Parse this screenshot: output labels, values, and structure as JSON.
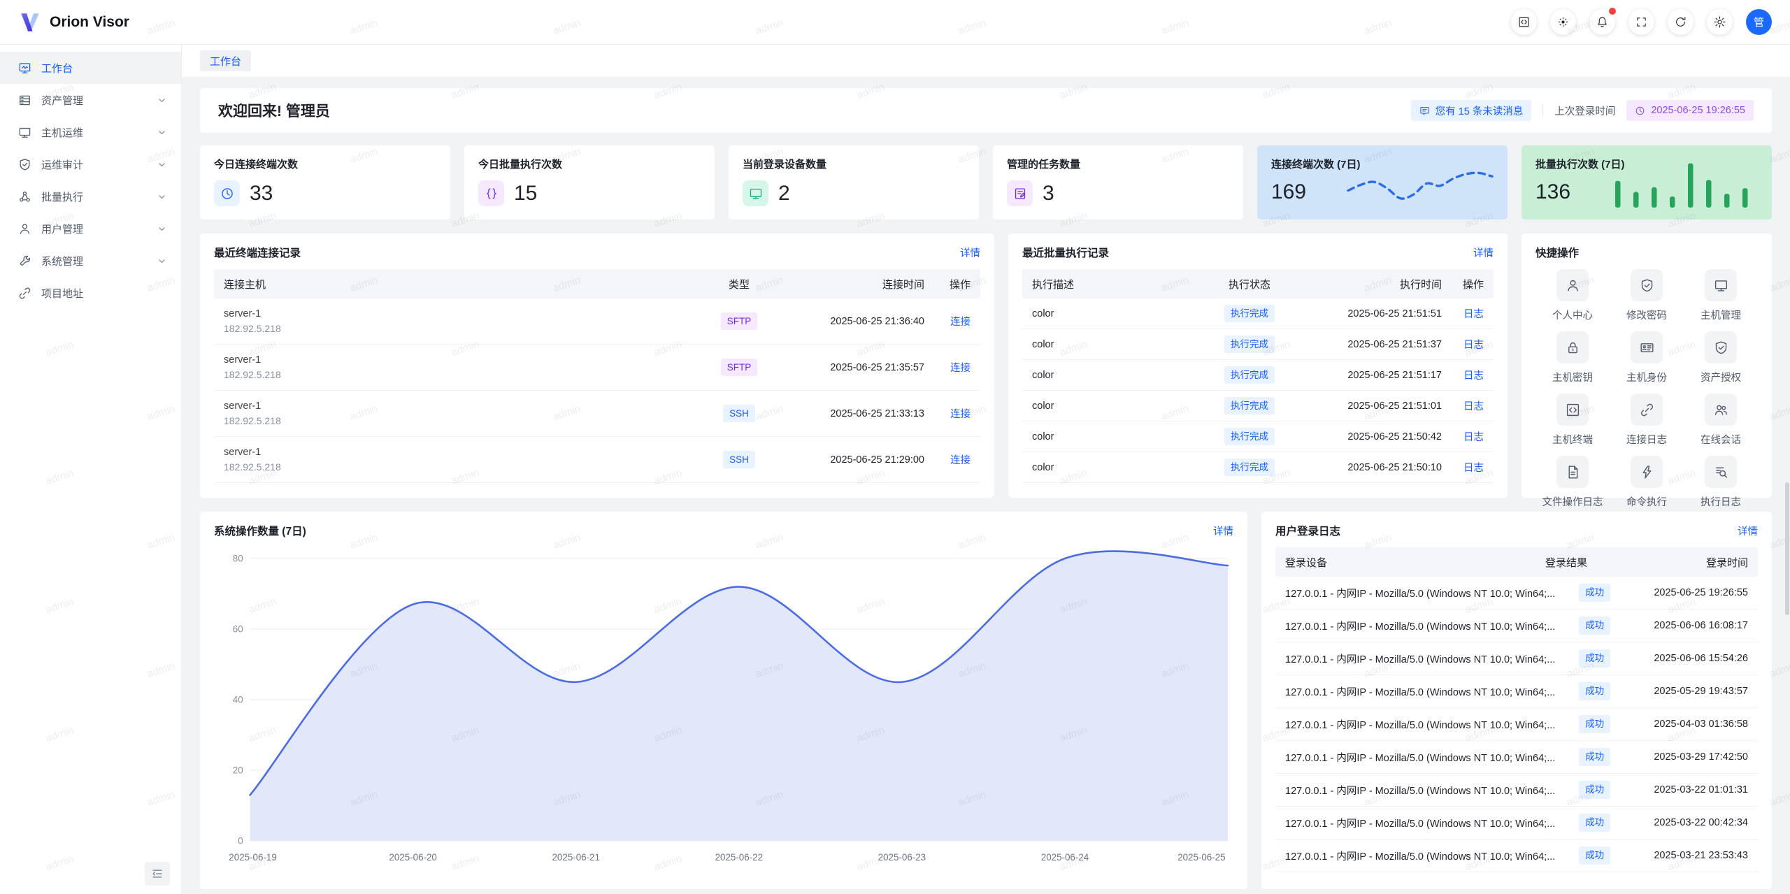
{
  "app": {
    "title": "Orion Visor",
    "avatar_text": "管"
  },
  "watermark": {
    "text": "admin"
  },
  "ui": {
    "detail_label": "详情"
  },
  "breadcrumb": {
    "label": "工作台"
  },
  "sidebar": {
    "items": [
      {
        "label": "工作台",
        "icon": "workbench",
        "active": true,
        "expandable": false
      },
      {
        "label": "资产管理",
        "icon": "assets",
        "active": false,
        "expandable": true
      },
      {
        "label": "主机运维",
        "icon": "monitor",
        "active": false,
        "expandable": true
      },
      {
        "label": "运维审计",
        "icon": "shield-check",
        "active": false,
        "expandable": true
      },
      {
        "label": "批量执行",
        "icon": "cluster",
        "active": false,
        "expandable": true
      },
      {
        "label": "用户管理",
        "icon": "person",
        "active": false,
        "expandable": true
      },
      {
        "label": "系统管理",
        "icon": "wrench",
        "active": false,
        "expandable": true
      },
      {
        "label": "项目地址",
        "icon": "link",
        "active": false,
        "expandable": false
      }
    ]
  },
  "welcome": {
    "title": "欢迎回来! 管理员",
    "unread_badge": "您有 15 条未读消息",
    "last_login_label": "上次登录时间",
    "last_login_time": "2025-06-25 19:26:55"
  },
  "stat_cards": [
    {
      "title": "今日连接终端次数",
      "value": "33",
      "icon": "clock",
      "icon_color": "#165dff",
      "icon_bg": "#e8f3ff"
    },
    {
      "title": "今日批量执行次数",
      "value": "15",
      "icon": "braces",
      "icon_color": "#722ed1",
      "icon_bg": "#f5e8ff"
    },
    {
      "title": "当前登录设备数量",
      "value": "2",
      "icon": "monitor",
      "icon_color": "#0cb57e",
      "icon_bg": "#d6f6ea"
    },
    {
      "title": "管理的任务数量",
      "value": "3",
      "icon": "task",
      "icon_color": "#722ed1",
      "icon_bg": "#f5e8ff"
    },
    {
      "value": "169",
      "bg": "#cfe3f9",
      "chart_ref": 1
    },
    {
      "value": "136",
      "bg": "#c9eed6",
      "chart_ref": 2
    }
  ],
  "panels": {
    "terminal": {
      "title": "最近终端连接记录",
      "columns": [
        "连接主机",
        "类型",
        "连接时间",
        "操作"
      ],
      "action_label": "连接",
      "rows": [
        {
          "host": "server-1",
          "ip": "182.92.5.218",
          "type": "SFTP",
          "time": "2025-06-25 21:36:40"
        },
        {
          "host": "server-1",
          "ip": "182.92.5.218",
          "type": "SFTP",
          "time": "2025-06-25 21:35:57"
        },
        {
          "host": "server-1",
          "ip": "182.92.5.218",
          "type": "SSH",
          "time": "2025-06-25 21:33:13"
        },
        {
          "host": "server-1",
          "ip": "182.92.5.218",
          "type": "SSH",
          "time": "2025-06-25 21:29:00"
        }
      ]
    },
    "batch": {
      "title": "最近批量执行记录",
      "columns": [
        "执行描述",
        "执行状态",
        "执行时间",
        "操作"
      ],
      "action_label": "日志",
      "rows": [
        {
          "desc": "color",
          "status": "执行完成",
          "time": "2025-06-25 21:51:51"
        },
        {
          "desc": "color",
          "status": "执行完成",
          "time": "2025-06-25 21:51:37"
        },
        {
          "desc": "color",
          "status": "执行完成",
          "time": "2025-06-25 21:51:17"
        },
        {
          "desc": "color",
          "status": "执行完成",
          "time": "2025-06-25 21:51:01"
        },
        {
          "desc": "color",
          "status": "执行完成",
          "time": "2025-06-25 21:50:42"
        },
        {
          "desc": "color",
          "status": "执行完成",
          "time": "2025-06-25 21:50:10"
        }
      ]
    },
    "quick": {
      "title": "快捷操作",
      "items": [
        {
          "label": "个人中心",
          "icon": "person"
        },
        {
          "label": "修改密码",
          "icon": "shield-check"
        },
        {
          "label": "主机管理",
          "icon": "monitor"
        },
        {
          "label": "主机密钥",
          "icon": "lock"
        },
        {
          "label": "主机身份",
          "icon": "id-card"
        },
        {
          "label": "资产授权",
          "icon": "shield-check"
        },
        {
          "label": "主机终端",
          "icon": "code-square"
        },
        {
          "label": "连接日志",
          "icon": "link"
        },
        {
          "label": "在线会话",
          "icon": "users"
        },
        {
          "label": "文件操作日志",
          "icon": "file-text"
        },
        {
          "label": "命令执行",
          "icon": "lightning"
        },
        {
          "label": "执行日志",
          "icon": "search-doc"
        }
      ]
    },
    "login": {
      "title": "用户登录日志",
      "columns": [
        "登录设备",
        "登录结果",
        "登录时间"
      ],
      "rows": [
        {
          "device": "127.0.0.1 - 内网IP - Mozilla/5.0 (Windows NT 10.0; Win64;...",
          "result": "成功",
          "time": "2025-06-25 19:26:55"
        },
        {
          "device": "127.0.0.1 - 内网IP - Mozilla/5.0 (Windows NT 10.0; Win64;...",
          "result": "成功",
          "time": "2025-06-06 16:08:17"
        },
        {
          "device": "127.0.0.1 - 内网IP - Mozilla/5.0 (Windows NT 10.0; Win64;...",
          "result": "成功",
          "time": "2025-06-06 15:54:26"
        },
        {
          "device": "127.0.0.1 - 内网IP - Mozilla/5.0 (Windows NT 10.0; Win64;...",
          "result": "成功",
          "time": "2025-05-29 19:43:57"
        },
        {
          "device": "127.0.0.1 - 内网IP - Mozilla/5.0 (Windows NT 10.0; Win64;...",
          "result": "成功",
          "time": "2025-04-03 01:36:58"
        },
        {
          "device": "127.0.0.1 - 内网IP - Mozilla/5.0 (Windows NT 10.0; Win64;...",
          "result": "成功",
          "time": "2025-03-29 17:42:50"
        },
        {
          "device": "127.0.0.1 - 内网IP - Mozilla/5.0 (Windows NT 10.0; Win64;...",
          "result": "成功",
          "time": "2025-03-22 01:01:31"
        },
        {
          "device": "127.0.0.1 - 内网IP - Mozilla/5.0 (Windows NT 10.0; Win64;...",
          "result": "成功",
          "time": "2025-03-22 00:42:34"
        },
        {
          "device": "127.0.0.1 - 内网IP - Mozilla/5.0 (Windows NT 10.0; Win64;...",
          "result": "成功",
          "time": "2025-03-21 23:53:43"
        }
      ]
    }
  },
  "chart_data": [
    {
      "id": "system-operations",
      "type": "area",
      "title": "系统操作数量 (7日)",
      "x": [
        "2025-06-19",
        "2025-06-20",
        "2025-06-21",
        "2025-06-22",
        "2025-06-23",
        "2025-06-24",
        "2025-06-25"
      ],
      "values": [
        13,
        67,
        45,
        72,
        45,
        80,
        78
      ],
      "ylim": [
        0,
        80
      ],
      "yticks": [
        0,
        20,
        40,
        60,
        80
      ],
      "grid": true,
      "legend": "none",
      "line_color": "#4b6ce5",
      "fill_color": "#e2e7fa"
    },
    {
      "id": "terminal-connections-spark",
      "type": "line",
      "title": "连接终端次数 (7日)",
      "values": [
        40,
        55,
        62,
        45,
        20,
        30,
        58,
        52,
        70,
        82,
        85,
        76
      ],
      "style": "dashed",
      "line_color": "#2b6de9"
    },
    {
      "id": "batch-executions-spark",
      "type": "bar",
      "title": "批量执行次数 (7日)",
      "values": [
        58,
        34,
        44,
        24,
        96,
        60,
        30,
        42
      ],
      "bar_color": "#28a35c"
    }
  ]
}
